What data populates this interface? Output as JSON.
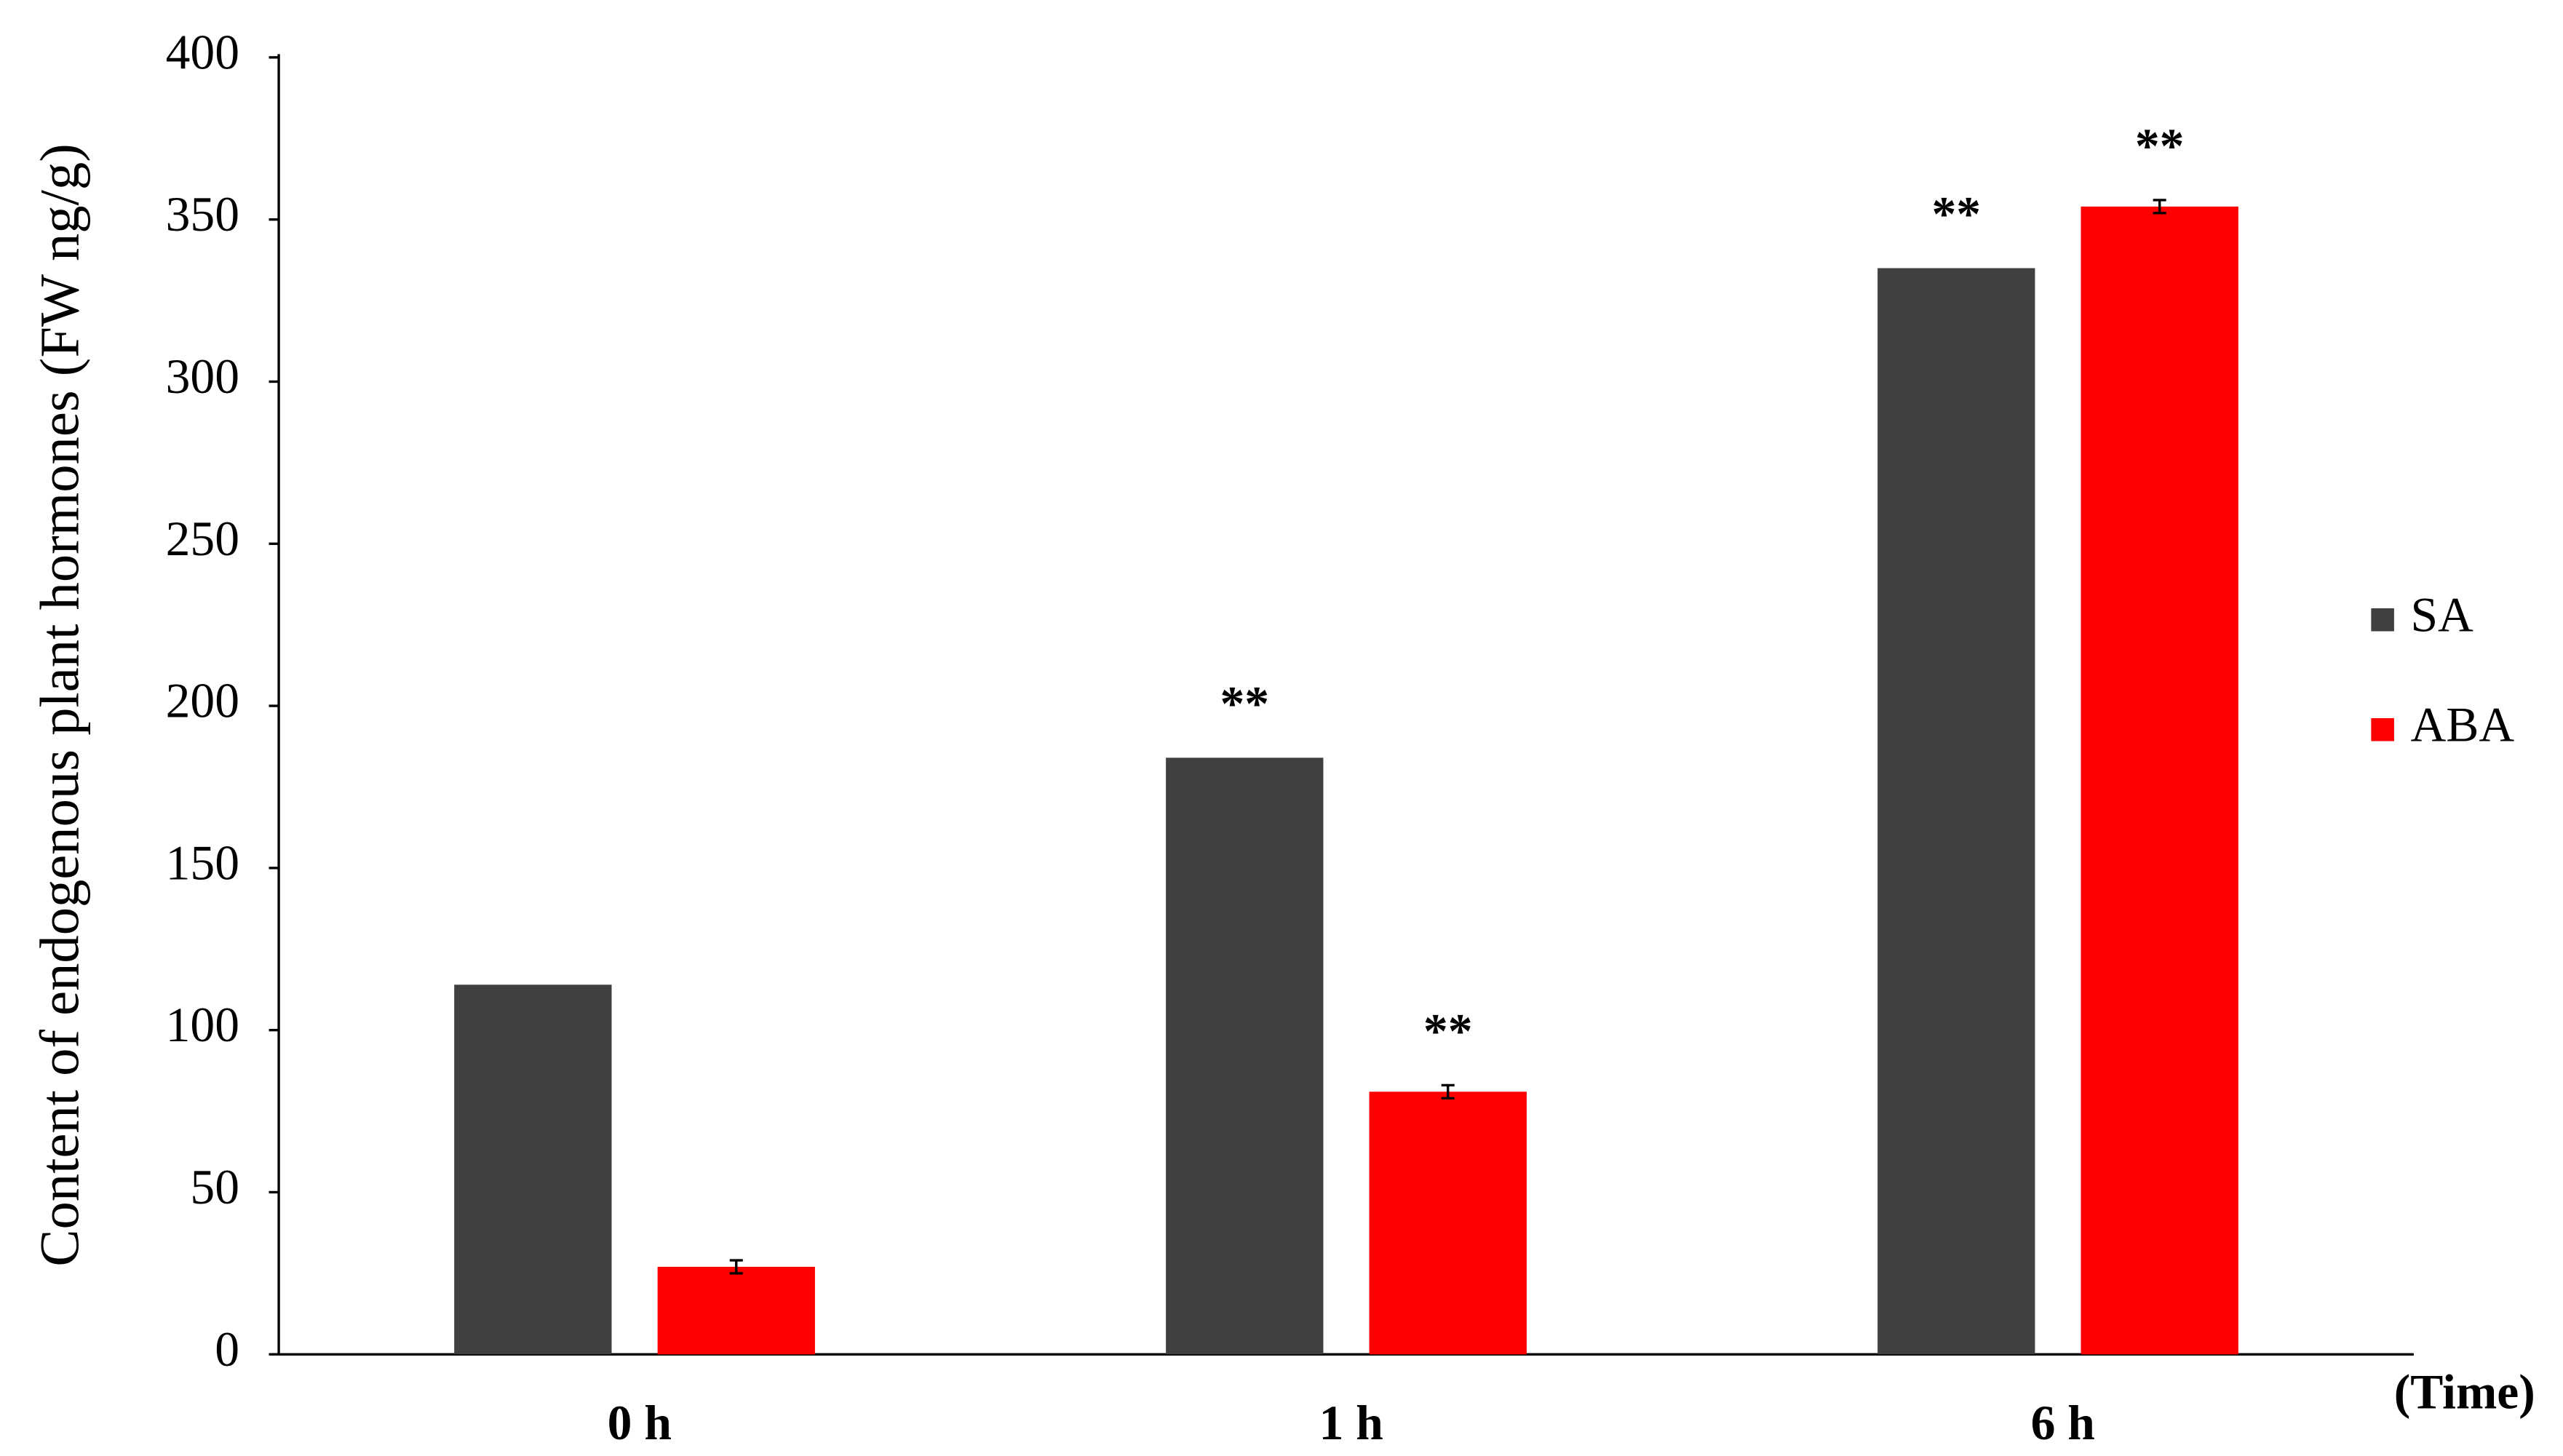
{
  "chart_data": {
    "type": "bar",
    "y_label": "Content of endogenous plant hormones (FW ng/g)",
    "x_label": "(Time)",
    "categories": [
      "0 h",
      "1 h",
      "6 h"
    ],
    "series": [
      {
        "name": "SA",
        "color": "#404040",
        "values": [
          114,
          184,
          335
        ],
        "annotations": [
          null,
          "**",
          "**"
        ]
      },
      {
        "name": "ABA",
        "color": "#ff0000",
        "values": [
          27,
          81,
          354
        ],
        "errors": [
          2,
          2,
          2
        ],
        "annotations": [
          null,
          "**",
          "**"
        ]
      }
    ],
    "ylim": [
      0,
      400
    ],
    "yticks": [
      0,
      50,
      100,
      150,
      200,
      250,
      300,
      350,
      400
    ],
    "grid": false,
    "legend": "right"
  }
}
